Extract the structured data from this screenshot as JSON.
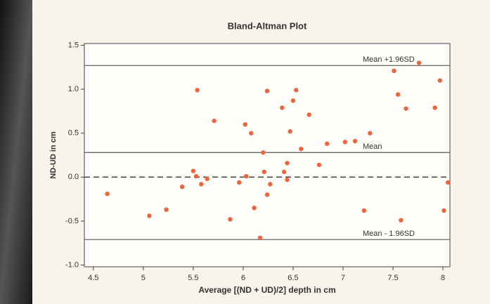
{
  "chart_data": {
    "type": "scatter",
    "title": "Bland-Altman Plot",
    "x_label": "Average [(ND + UD)/2] depth in cm",
    "y_label": "ND-UD in cm",
    "color": "#f0643c",
    "x": [
      4.64,
      5.06,
      5.23,
      5.39,
      5.5,
      5.53,
      5.58,
      5.64,
      5.54,
      5.71,
      5.87,
      5.96,
      6.02,
      6.03,
      6.08,
      6.11,
      6.2,
      6.21,
      6.24,
      6.24,
      6.27,
      6.17,
      6.39,
      6.41,
      6.44,
      6.44,
      6.47,
      6.5,
      6.53,
      6.58,
      6.66,
      6.76,
      6.84,
      7.02,
      7.12,
      7.21,
      7.27,
      7.51,
      7.55,
      7.58,
      7.63,
      7.76,
      7.92,
      7.97,
      8.01,
      8.05
    ],
    "values": [
      -0.19,
      -0.44,
      -0.37,
      -0.11,
      0.07,
      0.01,
      -0.08,
      -0.02,
      0.99,
      0.64,
      -0.48,
      -0.06,
      0.6,
      0.01,
      0.5,
      -0.35,
      0.28,
      0.06,
      0.98,
      -0.2,
      -0.08,
      -0.69,
      0.79,
      0.06,
      -0.03,
      0.16,
      0.52,
      0.87,
      0.99,
      0.32,
      0.71,
      0.14,
      0.38,
      0.4,
      0.41,
      -0.38,
      0.5,
      1.21,
      0.94,
      -0.49,
      0.78,
      1.3,
      0.79,
      1.1,
      -0.38,
      -0.06
    ],
    "reference_lines": [
      {
        "label": "Mean +1.96SD",
        "value": 1.27
      },
      {
        "label": "Mean",
        "value": 0.28
      },
      {
        "label": "Mean - 1.96SD",
        "value": -0.71
      }
    ],
    "zero_line": 0,
    "xlim": [
      4.41,
      8.07
    ],
    "ylim": [
      -1.02,
      1.52
    ],
    "xticks": [
      4.5,
      5.0,
      5.5,
      6.0,
      6.5,
      7.0,
      7.5,
      8.0
    ],
    "yticks": [
      {
        "value": -1.0,
        "label": "-1.0"
      },
      {
        "value": -0.5,
        "label": "-0.5"
      },
      {
        "value": 0,
        "label": "0.0"
      },
      {
        "value": 0.5,
        "label": "0.5"
      },
      {
        "value": 1.0,
        "label": "1.0"
      },
      {
        "value": 1.5,
        "label": "1.5"
      }
    ]
  }
}
